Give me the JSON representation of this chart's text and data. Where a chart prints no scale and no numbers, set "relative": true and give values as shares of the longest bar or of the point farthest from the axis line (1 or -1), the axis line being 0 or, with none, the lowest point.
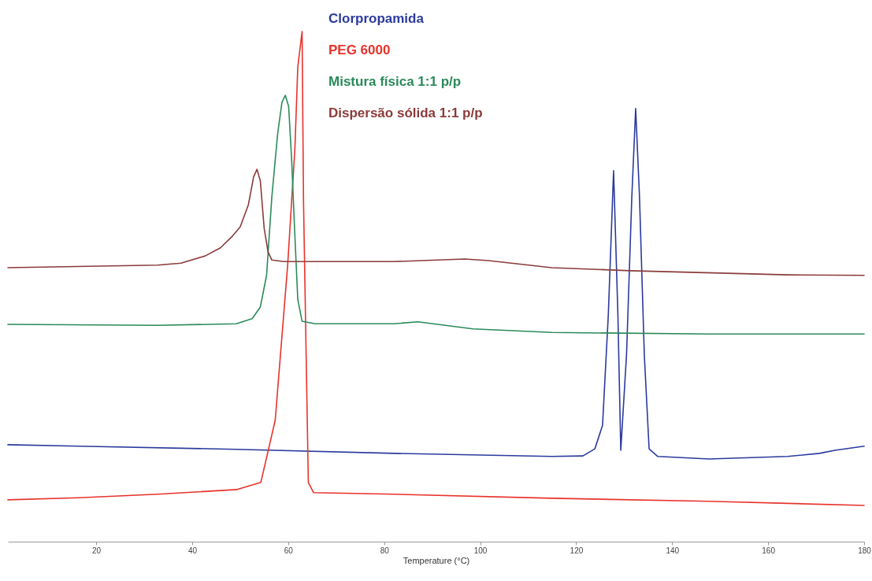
{
  "chart_data": {
    "type": "line",
    "relative": true,
    "xlabel": "Temperature (°C)",
    "xlim": [
      1.6,
      180
    ],
    "xticks": [
      20,
      40,
      60,
      80,
      100,
      120,
      140,
      160,
      180
    ],
    "grid": false,
    "legend": "top",
    "marker": "none",
    "line_style": "solid",
    "series": [
      {
        "name": "Clorpropamida",
        "color": "#2b3a9e",
        "x": [
          1.6,
          16.4,
          49.2,
          82.1,
          114.9,
          121.4,
          123.9,
          125.5,
          126.7,
          127.8,
          128.7,
          129.3,
          130.5,
          131.6,
          132.4,
          133.2,
          134.2,
          135.2,
          137.0,
          147.7,
          164.1,
          170.7,
          173.9,
          180.0
        ],
        "values": [
          0.19,
          0.187,
          0.181,
          0.173,
          0.167,
          0.168,
          0.182,
          0.228,
          0.444,
          0.727,
          0.444,
          0.179,
          0.367,
          0.676,
          0.849,
          0.676,
          0.367,
          0.182,
          0.167,
          0.162,
          0.167,
          0.173,
          0.179,
          0.187
        ]
      },
      {
        "name": "PEG 6000",
        "color": "#e8322b",
        "x": [
          1.6,
          16.4,
          32.8,
          49.2,
          54.3,
          57.3,
          59.9,
          61.4,
          62.0,
          62.9,
          63.2,
          64.2,
          65.3,
          82.1,
          114.9,
          147.7,
          180.0
        ],
        "values": [
          0.082,
          0.086,
          0.093,
          0.102,
          0.116,
          0.238,
          0.543,
          0.77,
          0.93,
          1,
          0.665,
          0.116,
          0.096,
          0.093,
          0.085,
          0.079,
          0.071
        ]
      },
      {
        "name": "Mistura física 1:1 p/p",
        "color": "#2a8a5a",
        "x": [
          1.6,
          32.8,
          49.2,
          52.5,
          54.2,
          55.5,
          56.6,
          57.8,
          58.7,
          59.4,
          60.1,
          60.7,
          61.4,
          62.0,
          62.9,
          65.6,
          82.1,
          87.0,
          88.6,
          98.5,
          114.9,
          147.7,
          180.0
        ],
        "values": [
          0.426,
          0.424,
          0.427,
          0.437,
          0.46,
          0.522,
          0.676,
          0.799,
          0.861,
          0.875,
          0.853,
          0.753,
          0.599,
          0.475,
          0.432,
          0.427,
          0.427,
          0.431,
          0.429,
          0.417,
          0.41,
          0.407,
          0.407
        ]
      },
      {
        "name": "Dispersão sólida 1:1 p/p",
        "color": "#8b3a3a",
        "x": [
          1.6,
          32.8,
          37.7,
          42.7,
          45.9,
          48.4,
          50.0,
          51.7,
          52.8,
          53.5,
          54.2,
          55.0,
          55.8,
          56.6,
          59.1,
          82.1,
          96.8,
          101.7,
          114.9,
          131.3,
          164.1,
          180.0
        ],
        "values": [
          0.537,
          0.542,
          0.546,
          0.56,
          0.576,
          0.599,
          0.617,
          0.66,
          0.715,
          0.73,
          0.707,
          0.614,
          0.568,
          0.552,
          0.549,
          0.549,
          0.554,
          0.551,
          0.537,
          0.531,
          0.523,
          0.522
        ]
      }
    ]
  }
}
